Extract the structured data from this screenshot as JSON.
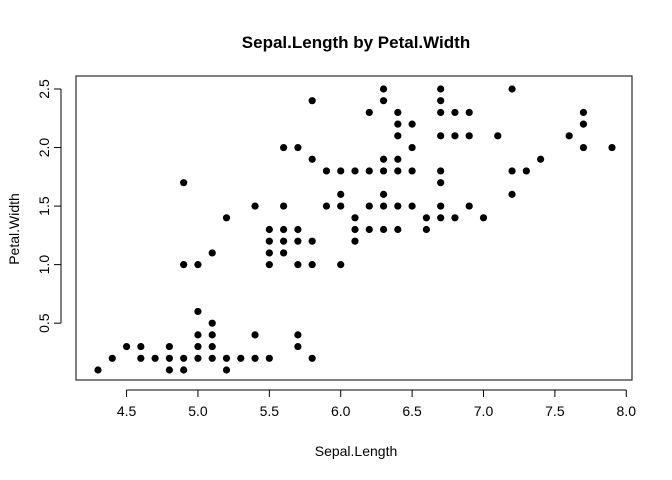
{
  "chart_data": {
    "type": "scatter",
    "title": "Sepal.Length by Petal.Width",
    "xlabel": "Sepal.Length",
    "ylabel": "Petal.Width",
    "xlim": [
      4.3,
      7.9
    ],
    "ylim": [
      0.1,
      2.5
    ],
    "x_ticks": [
      "4.5",
      "5.0",
      "5.5",
      "6.0",
      "6.5",
      "7.0",
      "7.5",
      "8.0"
    ],
    "y_ticks": [
      "0.5",
      "1.0",
      "1.5",
      "2.0",
      "2.5"
    ],
    "grid": false,
    "legend": "none",
    "point_color": "#000000",
    "points": [
      [
        4.3,
        0.1
      ],
      [
        4.4,
        0.2
      ],
      [
        4.5,
        0.3
      ],
      [
        4.6,
        0.2
      ],
      [
        4.6,
        0.3
      ],
      [
        4.7,
        0.2
      ],
      [
        4.8,
        0.1
      ],
      [
        4.8,
        0.2
      ],
      [
        4.8,
        0.3
      ],
      [
        4.9,
        0.1
      ],
      [
        4.9,
        0.2
      ],
      [
        4.9,
        1.0
      ],
      [
        4.9,
        1.7
      ],
      [
        5.0,
        0.2
      ],
      [
        5.0,
        0.3
      ],
      [
        5.0,
        0.4
      ],
      [
        5.0,
        0.6
      ],
      [
        5.0,
        1.0
      ],
      [
        5.1,
        0.2
      ],
      [
        5.1,
        0.3
      ],
      [
        5.1,
        0.4
      ],
      [
        5.1,
        0.5
      ],
      [
        5.1,
        1.1
      ],
      [
        5.2,
        0.1
      ],
      [
        5.2,
        0.2
      ],
      [
        5.2,
        1.4
      ],
      [
        5.3,
        0.2
      ],
      [
        5.4,
        0.2
      ],
      [
        5.4,
        0.4
      ],
      [
        5.4,
        1.5
      ],
      [
        5.5,
        0.2
      ],
      [
        5.5,
        1.0
      ],
      [
        5.5,
        1.1
      ],
      [
        5.5,
        1.2
      ],
      [
        5.5,
        1.3
      ],
      [
        5.6,
        1.1
      ],
      [
        5.6,
        1.2
      ],
      [
        5.6,
        1.3
      ],
      [
        5.6,
        1.5
      ],
      [
        5.6,
        2.0
      ],
      [
        5.7,
        0.3
      ],
      [
        5.7,
        0.4
      ],
      [
        5.7,
        1.0
      ],
      [
        5.7,
        1.2
      ],
      [
        5.7,
        1.3
      ],
      [
        5.7,
        2.0
      ],
      [
        5.8,
        0.2
      ],
      [
        5.8,
        1.0
      ],
      [
        5.8,
        1.2
      ],
      [
        5.8,
        1.9
      ],
      [
        5.8,
        2.4
      ],
      [
        5.9,
        1.5
      ],
      [
        5.9,
        1.8
      ],
      [
        6.0,
        1.0
      ],
      [
        6.0,
        1.5
      ],
      [
        6.0,
        1.6
      ],
      [
        6.0,
        1.8
      ],
      [
        6.1,
        1.2
      ],
      [
        6.1,
        1.3
      ],
      [
        6.1,
        1.4
      ],
      [
        6.1,
        1.8
      ],
      [
        6.2,
        1.3
      ],
      [
        6.2,
        1.5
      ],
      [
        6.2,
        1.8
      ],
      [
        6.2,
        2.3
      ],
      [
        6.3,
        1.3
      ],
      [
        6.3,
        1.5
      ],
      [
        6.3,
        1.6
      ],
      [
        6.3,
        1.8
      ],
      [
        6.3,
        1.9
      ],
      [
        6.3,
        2.4
      ],
      [
        6.3,
        2.5
      ],
      [
        6.4,
        1.3
      ],
      [
        6.4,
        1.5
      ],
      [
        6.4,
        1.8
      ],
      [
        6.4,
        1.9
      ],
      [
        6.4,
        2.1
      ],
      [
        6.4,
        2.2
      ],
      [
        6.4,
        2.3
      ],
      [
        6.5,
        1.5
      ],
      [
        6.5,
        1.8
      ],
      [
        6.5,
        2.0
      ],
      [
        6.5,
        2.2
      ],
      [
        6.6,
        1.3
      ],
      [
        6.6,
        1.4
      ],
      [
        6.7,
        1.4
      ],
      [
        6.7,
        1.5
      ],
      [
        6.7,
        1.7
      ],
      [
        6.7,
        1.8
      ],
      [
        6.7,
        2.1
      ],
      [
        6.7,
        2.3
      ],
      [
        6.7,
        2.4
      ],
      [
        6.7,
        2.5
      ],
      [
        6.8,
        1.4
      ],
      [
        6.8,
        2.1
      ],
      [
        6.8,
        2.3
      ],
      [
        6.9,
        1.5
      ],
      [
        6.9,
        2.1
      ],
      [
        6.9,
        2.3
      ],
      [
        7.0,
        1.4
      ],
      [
        7.1,
        2.1
      ],
      [
        7.2,
        1.6
      ],
      [
        7.2,
        1.8
      ],
      [
        7.2,
        2.5
      ],
      [
        7.3,
        1.8
      ],
      [
        7.4,
        1.9
      ],
      [
        7.6,
        2.1
      ],
      [
        7.7,
        2.0
      ],
      [
        7.7,
        2.2
      ],
      [
        7.7,
        2.3
      ],
      [
        7.9,
        2.0
      ]
    ]
  }
}
